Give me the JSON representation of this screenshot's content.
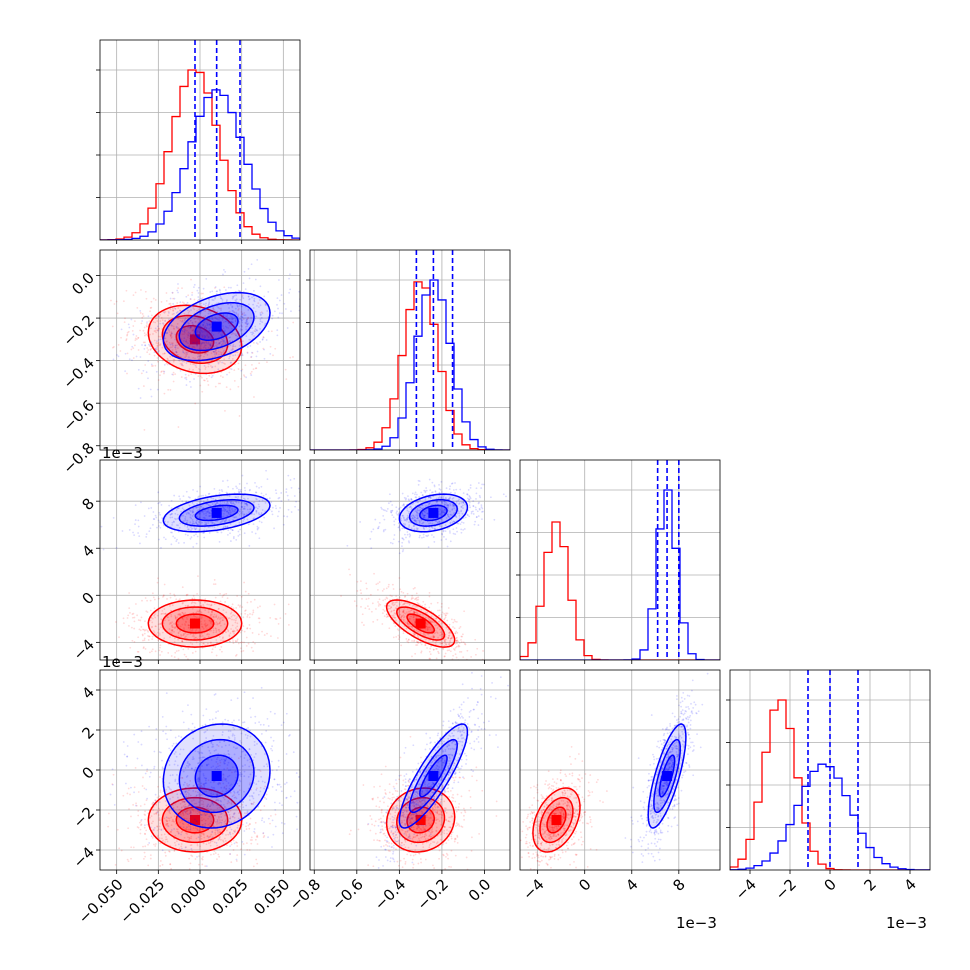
{
  "chart_data": {
    "type": "corner",
    "grid": true,
    "colors": {
      "red": "#ff0000",
      "blue": "#0000ff",
      "grid": "#b0b0b0"
    },
    "params": [
      {
        "ticks": [
          -0.05,
          -0.025,
          0.0,
          0.025,
          0.05
        ],
        "tick_labels": [
          "−0.050",
          "−0.025",
          "0.000",
          "0.025",
          "0.050"
        ],
        "range": [
          -0.06,
          0.06
        ],
        "offset_text": ""
      },
      {
        "ticks": [
          -0.8,
          -0.6,
          -0.4,
          -0.2,
          0.0
        ],
        "tick_labels": [
          "−0.8",
          "−0.6",
          "−0.4",
          "−0.2",
          "0.0"
        ],
        "range": [
          -0.82,
          0.12
        ],
        "offset_text": ""
      },
      {
        "ticks": [
          -4,
          0,
          4,
          8
        ],
        "tick_labels": [
          "−4",
          "0",
          "4",
          "8"
        ],
        "range": [
          -5.5,
          11.5
        ],
        "offset_text": "1e−3"
      },
      {
        "ticks": [
          -4,
          -2,
          0,
          2,
          4
        ],
        "tick_labels": [
          "−4",
          "−2",
          "0",
          "2",
          "4"
        ],
        "range": [
          -5.0,
          5.0
        ],
        "offset_text": "1e−3"
      }
    ],
    "series": [
      {
        "color": "red",
        "means": [
          -0.003,
          -0.3,
          -2.4,
          -2.5
        ],
        "sds": [
          0.014,
          0.08,
          1.0,
          0.8
        ],
        "quantile_lines": []
      },
      {
        "color": "blue",
        "means": [
          0.01,
          -0.24,
          7.0,
          -0.3
        ],
        "sds": [
          0.016,
          0.08,
          0.8,
          1.3
        ],
        "quantile_lines": [
          [
            -0.003,
            0.01,
            0.024
          ],
          [
            -0.32,
            -0.24,
            -0.15
          ],
          [
            6.2,
            7.0,
            8.0
          ],
          [
            -1.1,
            0.0,
            1.4
          ]
        ]
      }
    ]
  }
}
